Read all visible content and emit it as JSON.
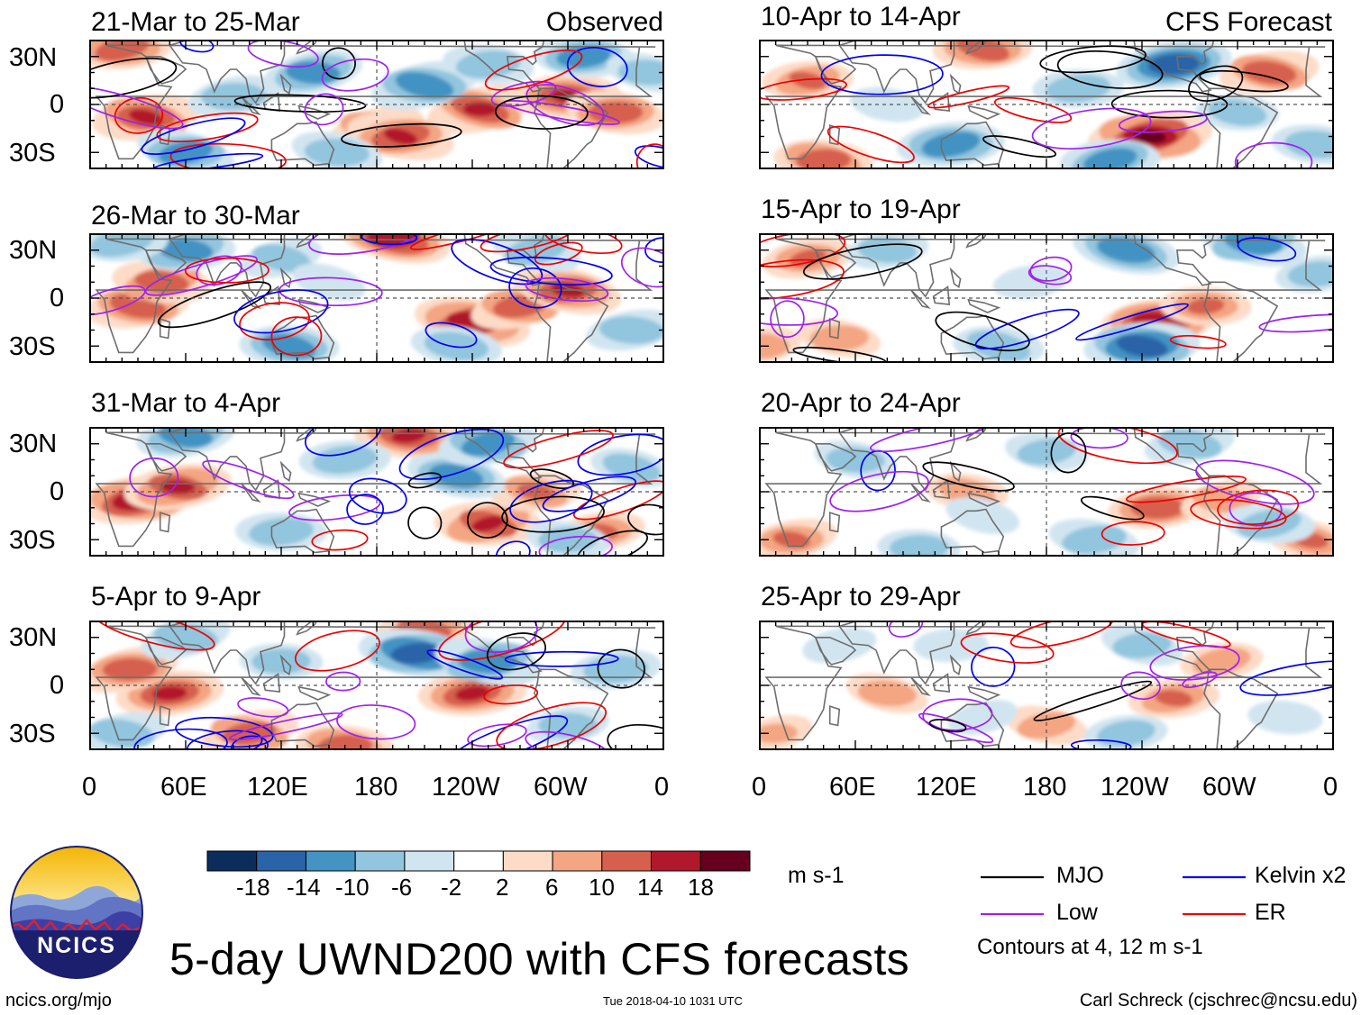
{
  "figure": {
    "title": "5-day UWND200 with CFS forecasts",
    "footer_left": "ncics.org/mjo",
    "footer_center": "Tue 2018-04-10 1031 UTC",
    "footer_right": "Carl Schreck (cjschrec@ncsu.edu)",
    "logo_text": "NCICS"
  },
  "colorbar": {
    "units": "m s-1",
    "tick_labels": [
      "-18",
      "-14",
      "-10",
      "-6",
      "-2",
      "2",
      "6",
      "10",
      "14",
      "18"
    ],
    "colors": [
      "#0b2d5c",
      "#2a64a8",
      "#4393c3",
      "#92c5de",
      "#d1e5f0",
      "#ffffff",
      "#fddbc7",
      "#f4a582",
      "#d6604d",
      "#b2182b",
      "#67001f"
    ]
  },
  "legend": {
    "items": [
      {
        "label": "MJO",
        "color": "#000000"
      },
      {
        "label": "Kelvin x2",
        "color": "#0000ee"
      },
      {
        "label": "Low",
        "color": "#a020f0"
      },
      {
        "label": "ER",
        "color": "#ee0000"
      }
    ],
    "note": "Contours at 4, 12 m s-1"
  },
  "chart_data": {
    "type": "heatmap",
    "variable": "200-hPa zonal wind (UWND200), 5-day means, filtered-wave contours overlaid",
    "x_axis": {
      "ticks": [
        "0",
        "60E",
        "120E",
        "180",
        "120W",
        "60W",
        "0"
      ],
      "range_deg_east": [
        0,
        360
      ]
    },
    "y_axis": {
      "ticks": [
        "30N",
        "0",
        "30S"
      ],
      "range_deg_lat": [
        -40,
        40
      ]
    },
    "columns": [
      {
        "label": "Observed",
        "panels": [
          {
            "title": "21-Mar to 25-Mar",
            "features": [
              [
                35,
                -8,
                14
              ],
              [
                180,
                -15,
                11
              ],
              [
                245,
                -3,
                14
              ],
              [
                300,
                5,
                14
              ],
              [
                330,
                -5,
                12
              ],
              [
                20,
                35,
                12
              ],
              [
                195,
                -20,
                14
              ],
              [
                90,
                5,
                -10
              ],
              [
                140,
                20,
                -12
              ],
              [
                210,
                12,
                -14
              ],
              [
                310,
                30,
                -12
              ],
              [
                250,
                25,
                -10
              ],
              [
                155,
                -30,
                -10
              ],
              [
                60,
                -30,
                -12
              ],
              [
                350,
                20,
                -8
              ]
            ]
          },
          {
            "title": "26-Mar to 30-Mar",
            "features": [
              [
                30,
                -5,
                13
              ],
              [
                45,
                10,
                12
              ],
              [
                240,
                -15,
                16
              ],
              [
                270,
                -5,
                12
              ],
              [
                300,
                5,
                14
              ],
              [
                190,
                38,
                16
              ],
              [
                230,
                -30,
                -10
              ],
              [
                125,
                -30,
                -12
              ],
              [
                60,
                30,
                -12
              ],
              [
                20,
                35,
                -10
              ],
              [
                120,
                25,
                -8
              ],
              [
                280,
                30,
                -10
              ],
              [
                340,
                -20,
                -10
              ],
              [
                150,
                10,
                -6
              ]
            ]
          },
          {
            "title": "31-Mar to 4-Apr",
            "features": [
              [
                30,
                -5,
                16
              ],
              [
                55,
                3,
                14
              ],
              [
                250,
                -20,
                14
              ],
              [
                200,
                35,
                14
              ],
              [
                280,
                0,
                10
              ],
              [
                320,
                -25,
                10
              ],
              [
                60,
                35,
                -12
              ],
              [
                120,
                -25,
                -10
              ],
              [
                230,
                10,
                -12
              ],
              [
                160,
                20,
                -10
              ],
              [
                340,
                15,
                -8
              ],
              [
                300,
                -30,
                -8
              ],
              [
                250,
                30,
                -12
              ]
            ]
          },
          {
            "title": "5-Apr to 9-Apr",
            "features": [
              [
                50,
                -5,
                14
              ],
              [
                25,
                10,
                12
              ],
              [
                240,
                -5,
                14
              ],
              [
                210,
                35,
                12
              ],
              [
                100,
                -30,
                12
              ],
              [
                160,
                -38,
                12
              ],
              [
                205,
                20,
                -16
              ],
              [
                250,
                15,
                -14
              ],
              [
                60,
                30,
                -10
              ],
              [
                330,
                10,
                -10
              ],
              [
                300,
                -25,
                -8
              ],
              [
                120,
                15,
                -8
              ],
              [
                20,
                -30,
                -10
              ]
            ]
          }
        ]
      },
      {
        "label": "CFS Forecast",
        "panels": [
          {
            "title": "10-Apr to 14-Apr",
            "features": [
              [
                245,
                -20,
                18
              ],
              [
                30,
                15,
                10
              ],
              [
                140,
                35,
                12
              ],
              [
                320,
                20,
                12
              ],
              [
                40,
                -35,
                12
              ],
              [
                220,
                -35,
                -12
              ],
              [
                260,
                25,
                -16
              ],
              [
                120,
                -25,
                -14
              ],
              [
                200,
                10,
                -10
              ],
              [
                350,
                -25,
                -10
              ],
              [
                80,
                0,
                -6
              ],
              [
                300,
                -5,
                -8
              ]
            ]
          },
          {
            "title": "15-Apr to 19-Apr",
            "features": [
              [
                250,
                -15,
                16
              ],
              [
                280,
                -5,
                10
              ],
              [
                30,
                25,
                10
              ],
              [
                0,
                -30,
                8
              ],
              [
                50,
                -25,
                8
              ],
              [
                240,
                -30,
                -16
              ],
              [
                230,
                30,
                -14
              ],
              [
                310,
                35,
                -14
              ],
              [
                150,
                -30,
                -10
              ],
              [
                80,
                30,
                -8
              ],
              [
                170,
                10,
                -6
              ],
              [
                350,
                15,
                -8
              ]
            ]
          },
          {
            "title": "20-Apr to 24-Apr",
            "features": [
              [
                250,
                -10,
                12
              ],
              [
                290,
                -5,
                8
              ],
              [
                130,
                0,
                8
              ],
              [
                20,
                -30,
                10
              ],
              [
                345,
                -30,
                10
              ],
              [
                270,
                30,
                -10
              ],
              [
                210,
                -30,
                -10
              ],
              [
                320,
                -20,
                -10
              ],
              [
                100,
                -35,
                -8
              ],
              [
                60,
                20,
                -8
              ],
              [
                180,
                25,
                -8
              ],
              [
                140,
                -15,
                -6
              ]
            ]
          },
          {
            "title": "25-Apr to 29-Apr",
            "features": [
              [
                260,
                -8,
                10
              ],
              [
                80,
                -5,
                8
              ],
              [
                290,
                15,
                8
              ],
              [
                180,
                -25,
                8
              ],
              [
                10,
                -30,
                6
              ],
              [
                240,
                25,
                -8
              ],
              [
                230,
                -30,
                -8
              ],
              [
                330,
                -20,
                -6
              ],
              [
                120,
                25,
                -6
              ],
              [
                50,
                25,
                -6
              ],
              [
                140,
                -20,
                -5
              ]
            ]
          }
        ]
      }
    ]
  }
}
